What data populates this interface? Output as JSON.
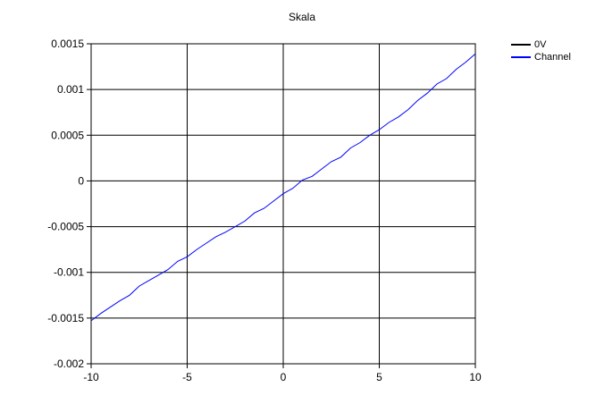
{
  "chart_data": {
    "type": "line",
    "title": "Skala",
    "xlabel": "",
    "ylabel": "",
    "xlim": [
      -10,
      10
    ],
    "ylim": [
      -0.002,
      0.0015
    ],
    "xticks": [
      -10,
      -5,
      0,
      5,
      10
    ],
    "xtick_labels": [
      "-10",
      "-5",
      "0",
      "5",
      "10"
    ],
    "yticks": [
      -0.002,
      -0.0015,
      -0.001,
      -0.0005,
      0,
      0.0005,
      0.001,
      0.0015
    ],
    "ytick_labels": [
      "-0.002",
      "-0.0015",
      "-0.001",
      "-0.0005",
      "0",
      "0.0005",
      "0.001",
      "0.0015"
    ],
    "grid": true,
    "legend_position": "top-right",
    "series": [
      {
        "name": "0V",
        "color": "#000000",
        "x": [],
        "y": []
      },
      {
        "name": "Channel",
        "color": "#0000ff",
        "x": [
          -10,
          -9.5,
          -9,
          -8.5,
          -8,
          -7.5,
          -7,
          -6.5,
          -6,
          -5.5,
          -5,
          -4.5,
          -4,
          -3.5,
          -3,
          -2.5,
          -2,
          -1.5,
          -1,
          -0.5,
          0,
          0.5,
          1,
          1.5,
          2,
          2.5,
          3,
          3.5,
          4,
          4.5,
          5,
          5.5,
          6,
          6.5,
          7,
          7.5,
          8,
          8.5,
          9,
          9.5,
          10
        ],
        "y": [
          -0.00153,
          -0.00145,
          -0.00138,
          -0.00131,
          -0.00125,
          -0.00115,
          -0.00109,
          -0.00103,
          -0.00097,
          -0.00088,
          -0.00083,
          -0.00075,
          -0.00068,
          -0.00061,
          -0.00056,
          -0.0005,
          -0.00044,
          -0.00035,
          -0.0003,
          -0.00022,
          -0.00014,
          -8e-05,
          1e-05,
          5e-05,
          0.00013,
          0.00021,
          0.00026,
          0.00036,
          0.00042,
          0.0005,
          0.00056,
          0.00064,
          0.0007,
          0.00078,
          0.00088,
          0.00096,
          0.00106,
          0.00112,
          0.00122,
          0.0013,
          0.00139
        ]
      }
    ]
  }
}
